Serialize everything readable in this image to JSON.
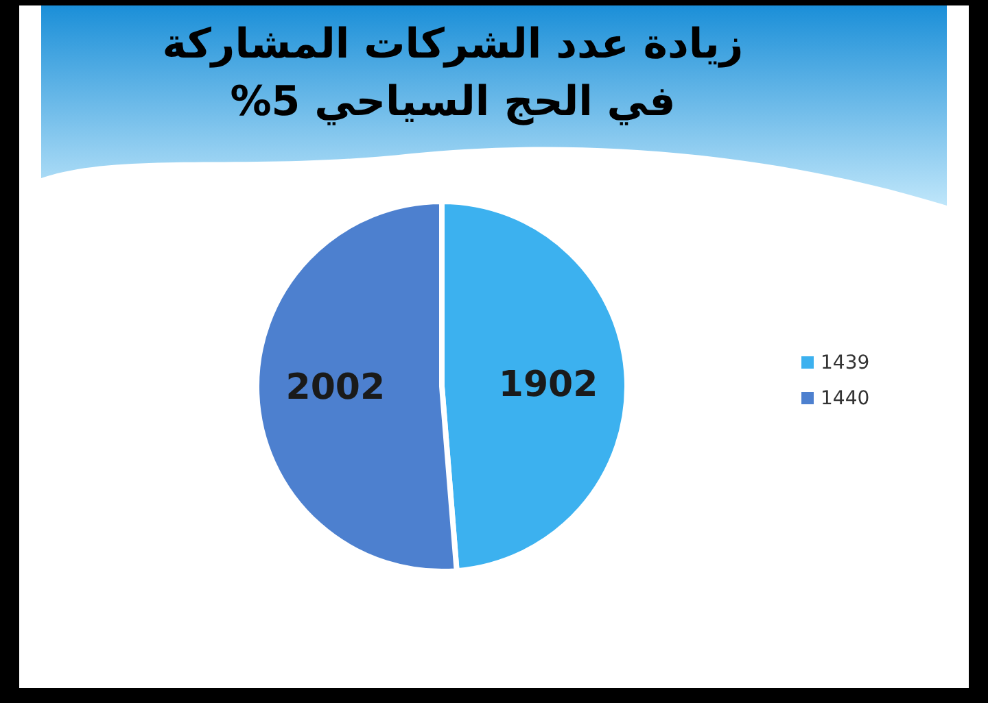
{
  "chart_data": {
    "type": "pie",
    "title": "زيادة عدد الشركات المشاركة\nفي الحج السياحي 5%",
    "categories": [
      "1439",
      "1440"
    ],
    "values": [
      1902,
      2002
    ],
    "colors": [
      "#3cb1ef",
      "#4d80cf"
    ],
    "data_labels": true,
    "legend": "right"
  }
}
